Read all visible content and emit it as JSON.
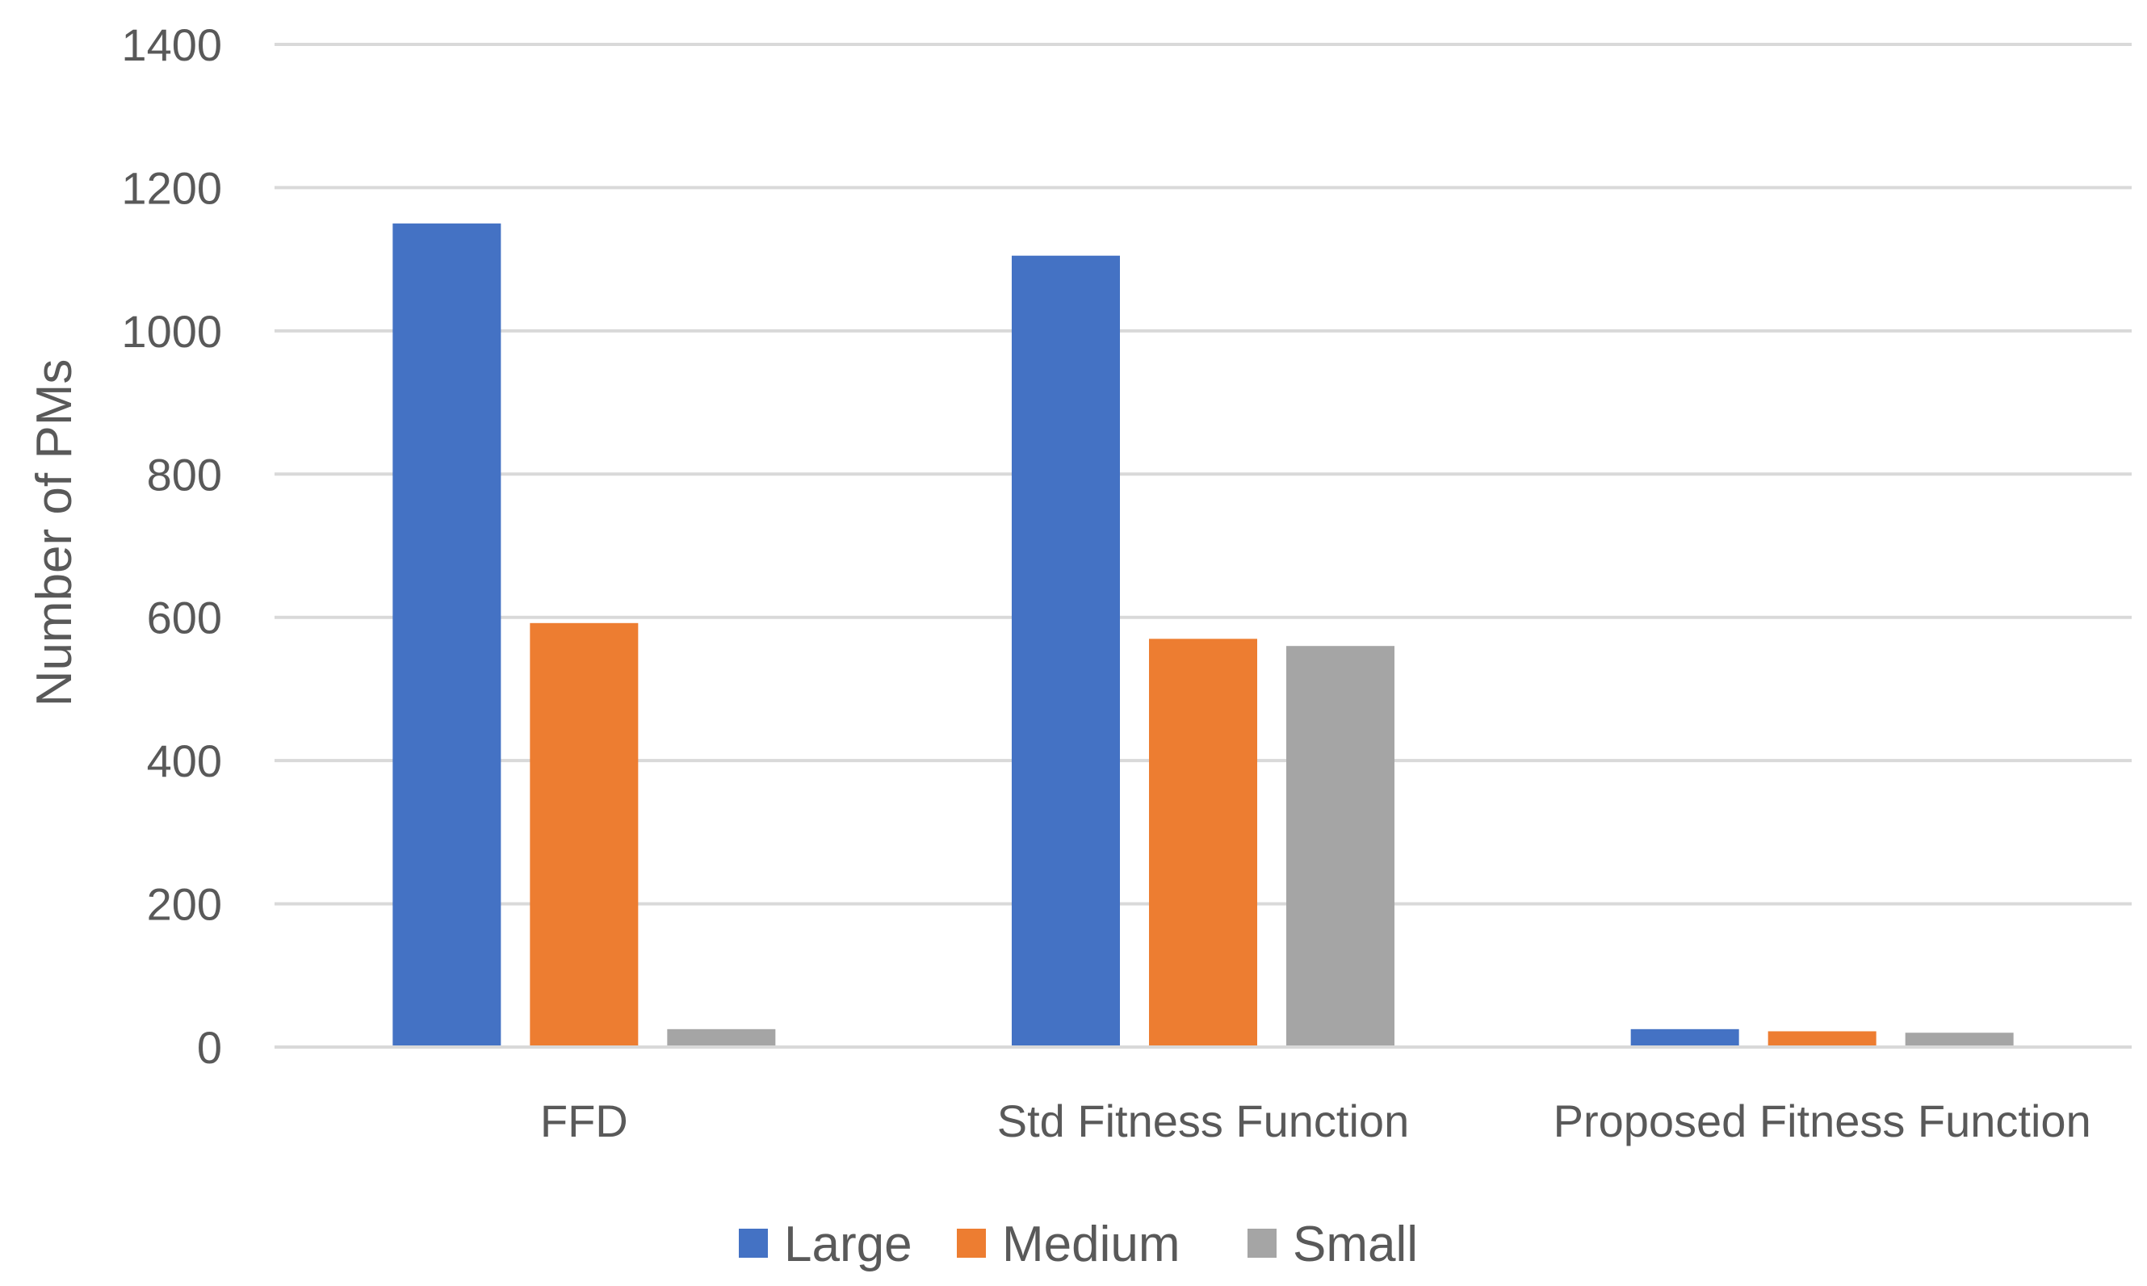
{
  "chart_data": {
    "type": "bar",
    "title": "",
    "xlabel": "",
    "ylabel": "Number of PMs",
    "ylim": [
      0,
      1400
    ],
    "yticks": [
      0,
      200,
      400,
      600,
      800,
      1000,
      1200,
      1400
    ],
    "grid": true,
    "legend_position": "bottom",
    "categories": [
      "FFD",
      "Std Fitness Function",
      "Proposed Fitness Function"
    ],
    "series": [
      {
        "name": "Large",
        "color": "#4472c4",
        "values": [
          1150,
          1105,
          25
        ]
      },
      {
        "name": "Medium",
        "color": "#ed7d31",
        "values": [
          592,
          570,
          22
        ]
      },
      {
        "name": "Small",
        "color": "#a5a5a5",
        "values": [
          25,
          560,
          20
        ]
      }
    ]
  }
}
